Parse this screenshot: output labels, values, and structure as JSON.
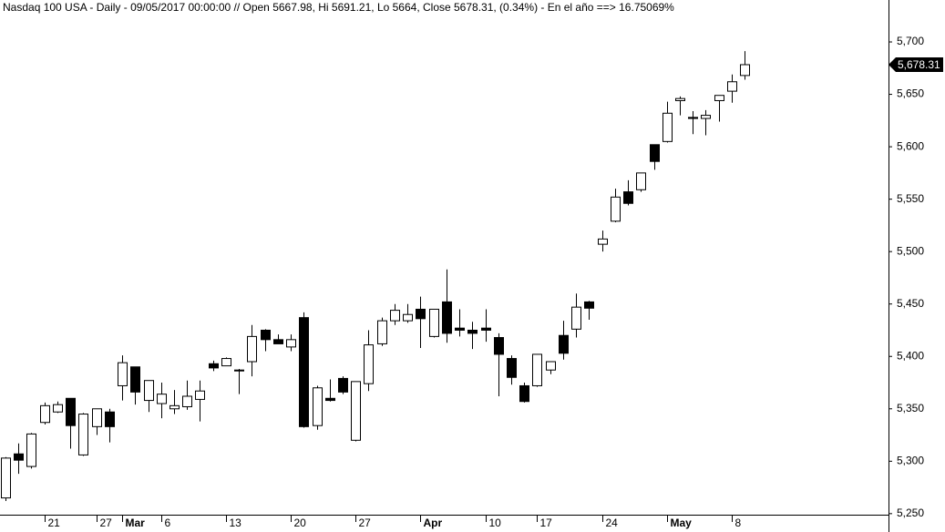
{
  "chart_data": {
    "type": "candlestick",
    "title": "Nasdaq 100 USA - Daily - 09/05/2017 00:00:00 // Open 5667.98, Hi 5691.21, Lo 5664, Close 5678.31, (0.34%) - En el año ==> 16.75069%",
    "categories": [
      null,
      null,
      null,
      "21",
      null,
      null,
      null,
      "27",
      null,
      "Mar",
      null,
      null,
      "6",
      null,
      null,
      null,
      null,
      "13",
      null,
      null,
      null,
      null,
      "20",
      null,
      null,
      null,
      null,
      "27",
      null,
      null,
      null,
      null,
      "Apr",
      null,
      null,
      null,
      null,
      "10",
      null,
      null,
      null,
      "17",
      null,
      null,
      null,
      null,
      "24",
      null,
      null,
      null,
      null,
      "May",
      null,
      null,
      null,
      null,
      "8",
      null
    ],
    "open": [
      5265,
      5307,
      5295,
      5337,
      5347,
      5360,
      5306,
      5333,
      5347,
      5372,
      5390,
      5358,
      5355,
      5350,
      5352,
      5359,
      5393,
      5391,
      5387,
      5395,
      5425,
      5416,
      5409,
      5437,
      5334,
      5360,
      5379,
      5320,
      5374,
      5412,
      5434,
      5434,
      5445,
      5419,
      5452,
      5427,
      5425,
      5427,
      5418,
      5398,
      5372,
      5372,
      5387,
      5420,
      5426,
      5452,
      5507,
      5529,
      5557,
      5559,
      5602,
      5605,
      5644,
      5628,
      5627,
      5644,
      5653,
      5667.98
    ],
    "high": [
      5304,
      5317,
      5327,
      5356,
      5357,
      5360,
      5346,
      5350,
      5350,
      5401,
      5390,
      5377,
      5375,
      5368,
      5377,
      5377,
      5396,
      5399,
      5388,
      5430,
      5426,
      5421,
      5421,
      5442,
      5372,
      5378,
      5381,
      5376,
      5425,
      5437,
      5450,
      5450,
      5457,
      5445,
      5483,
      5445,
      5433,
      5445,
      5422,
      5401,
      5375,
      5402,
      5395,
      5434,
      5460,
      5453,
      5520,
      5560,
      5568,
      5575,
      5602,
      5643,
      5648,
      5634,
      5635,
      5649,
      5669,
      5691.21
    ],
    "low": [
      5262,
      5288,
      5293,
      5335,
      5346,
      5312,
      5305,
      5325,
      5318,
      5358,
      5354,
      5347,
      5341,
      5345,
      5349,
      5338,
      5386,
      5391,
      5364,
      5381,
      5405,
      5412,
      5405,
      5332,
      5330,
      5357,
      5364,
      5319,
      5367,
      5410,
      5430,
      5432,
      5408,
      5418,
      5413,
      5419,
      5407,
      5414,
      5362,
      5373,
      5356,
      5371,
      5383,
      5397,
      5418,
      5435,
      5500,
      5528,
      5544,
      5557,
      5578,
      5604,
      5630,
      5612,
      5611,
      5624,
      5642,
      5664
    ],
    "close": [
      5303,
      5301,
      5326,
      5353,
      5354,
      5334,
      5345,
      5350,
      5333,
      5394,
      5366,
      5377,
      5364,
      5353,
      5362,
      5367,
      5389,
      5398,
      5387,
      5419,
      5416,
      5412,
      5416,
      5333,
      5370,
      5358,
      5366,
      5376,
      5411,
      5434,
      5444,
      5440,
      5436,
      5445,
      5422,
      5425,
      5422,
      5425,
      5402,
      5380,
      5357,
      5402,
      5395,
      5403,
      5447,
      5446,
      5512,
      5552,
      5546,
      5575,
      5586,
      5632,
      5646,
      5627,
      5630,
      5649,
      5662,
      5678.31
    ],
    "up_color": "#ffffff",
    "down_color": "#000000",
    "last_price_label": "5,678.31",
    "ylim": [
      5249,
      5740
    ],
    "yticks": [
      {
        "value": 5250,
        "label": "5,250"
      },
      {
        "value": 5300,
        "label": "5,300"
      },
      {
        "value": 5350,
        "label": "5,350"
      },
      {
        "value": 5400,
        "label": "5,400"
      },
      {
        "value": 5450,
        "label": "5,450"
      },
      {
        "value": 5500,
        "label": "5,500"
      },
      {
        "value": 5550,
        "label": "5,550"
      },
      {
        "value": 5600,
        "label": "5,600"
      },
      {
        "value": 5650,
        "label": "5,650"
      },
      {
        "value": 5700,
        "label": "5,700"
      }
    ]
  }
}
